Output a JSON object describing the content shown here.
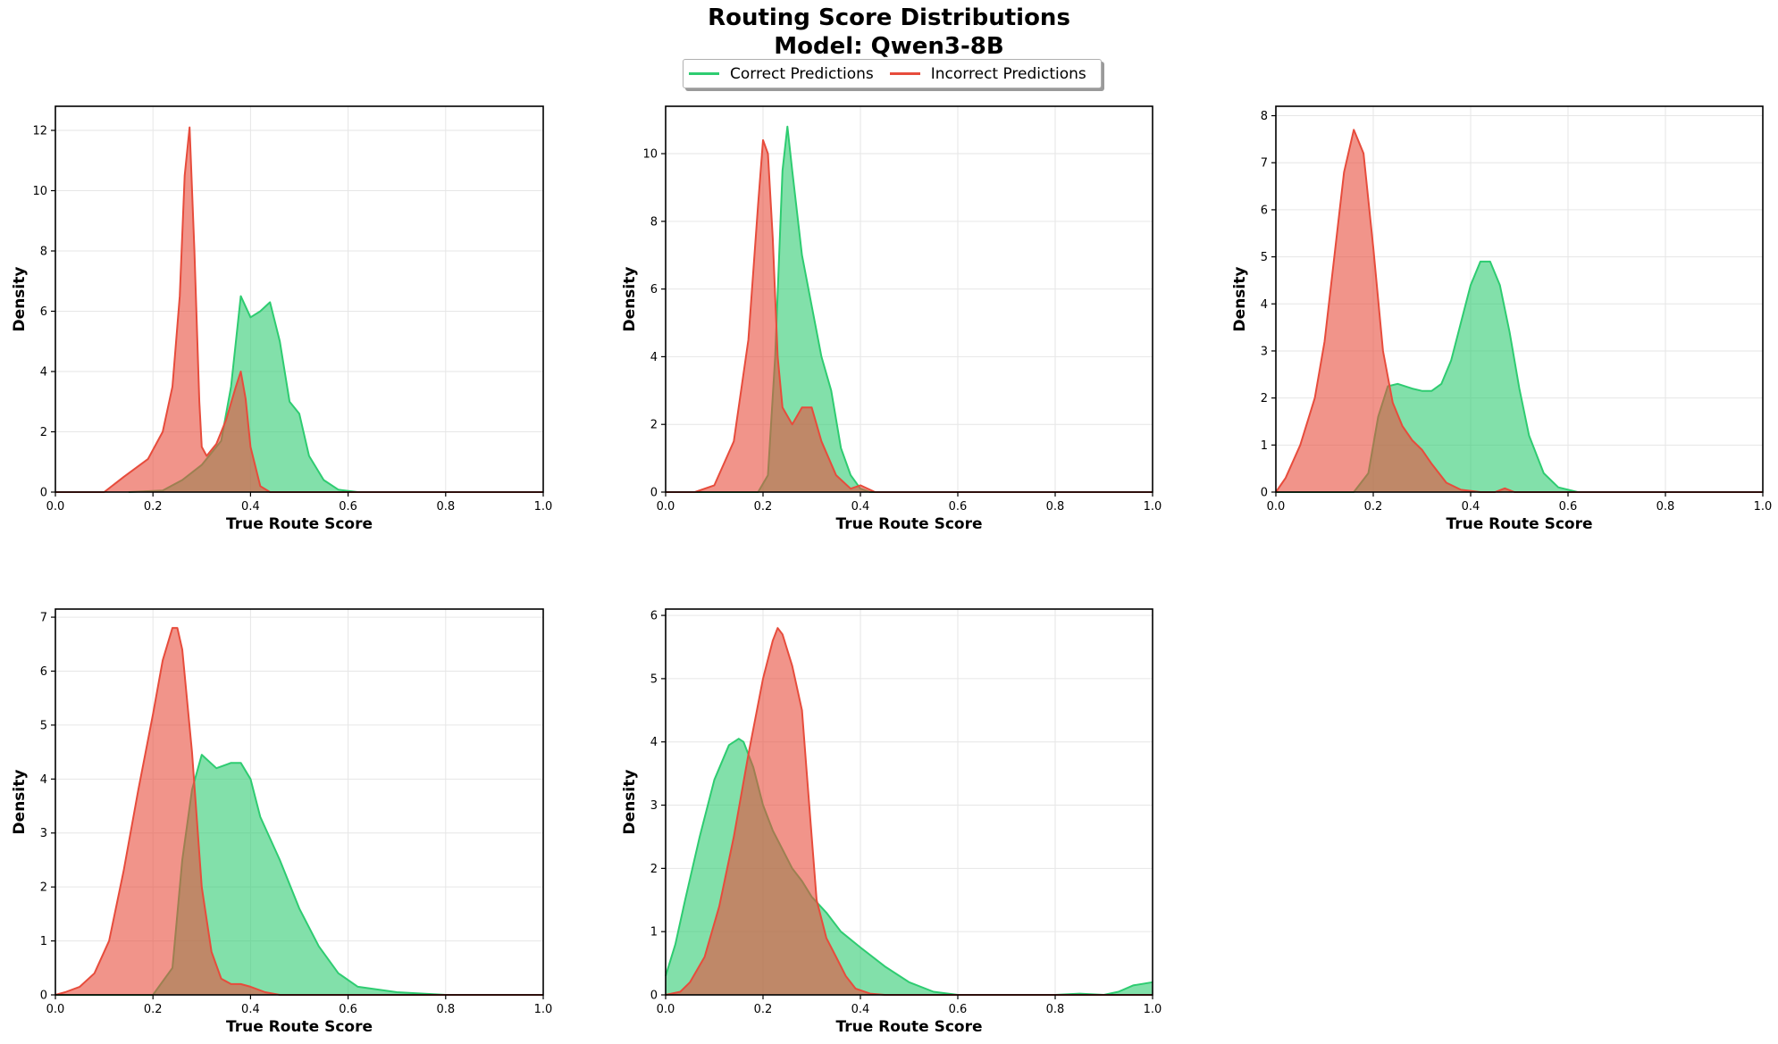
{
  "figure": {
    "title": "Routing Score Distributions",
    "subtitle": "Model: Qwen3-8B",
    "legend": [
      {
        "label": "Correct Predictions",
        "color": "#2ecc71"
      },
      {
        "label": "Incorrect Predictions",
        "color": "#e74c3c"
      }
    ],
    "colors": {
      "correct_fill": "#2ecc71",
      "correct_line": "#2ecc71",
      "incorrect_fill": "#e74c3c",
      "incorrect_line": "#e74c3c"
    }
  },
  "chart_data": [
    {
      "type": "area",
      "xlabel": "True Route Score",
      "ylabel": "Density",
      "xlim": [
        0,
        1
      ],
      "ylim": [
        0,
        12.8
      ],
      "xticks": [
        "0.0",
        "0.2",
        "0.4",
        "0.6",
        "0.8",
        "1.0"
      ],
      "yticks": [
        "0",
        "2",
        "4",
        "6",
        "8",
        "10",
        "12"
      ],
      "ytick_values": [
        0,
        2,
        4,
        6,
        8,
        10,
        12
      ],
      "grid": true,
      "series": [
        {
          "name": "Correct Predictions",
          "x": [
            0.15,
            0.22,
            0.26,
            0.3,
            0.34,
            0.36,
            0.38,
            0.4,
            0.42,
            0.44,
            0.46,
            0.48,
            0.5,
            0.52,
            0.55,
            0.58,
            0.62,
            1.0
          ],
          "y": [
            0,
            0.05,
            0.4,
            0.9,
            1.7,
            3.5,
            6.5,
            5.8,
            6.0,
            6.3,
            5.0,
            3.0,
            2.6,
            1.2,
            0.4,
            0.08,
            0,
            0
          ]
        },
        {
          "name": "Incorrect Predictions",
          "x": [
            0.0,
            0.1,
            0.14,
            0.19,
            0.22,
            0.24,
            0.255,
            0.265,
            0.275,
            0.285,
            0.295,
            0.3,
            0.31,
            0.33,
            0.35,
            0.37,
            0.38,
            0.39,
            0.4,
            0.42,
            0.44,
            1.0
          ],
          "y": [
            0,
            0,
            0.5,
            1.1,
            2.0,
            3.5,
            6.5,
            10.5,
            12.1,
            8.0,
            3.0,
            1.5,
            1.2,
            1.6,
            2.4,
            3.5,
            4.0,
            3.1,
            1.5,
            0.2,
            0,
            0
          ]
        }
      ]
    },
    {
      "type": "area",
      "xlabel": "True Route Score",
      "ylabel": "Density",
      "xlim": [
        0,
        1
      ],
      "ylim": [
        0,
        11.4
      ],
      "xticks": [
        "0.0",
        "0.2",
        "0.4",
        "0.6",
        "0.8",
        "1.0"
      ],
      "yticks": [
        "0",
        "2",
        "4",
        "6",
        "8",
        "10"
      ],
      "ytick_values": [
        0,
        2,
        4,
        6,
        8,
        10
      ],
      "grid": true,
      "series": [
        {
          "name": "Correct Predictions",
          "x": [
            0.0,
            0.19,
            0.21,
            0.225,
            0.24,
            0.25,
            0.26,
            0.28,
            0.3,
            0.32,
            0.34,
            0.36,
            0.38,
            0.4,
            0.42,
            1.0
          ],
          "y": [
            0,
            0,
            0.5,
            4.0,
            9.5,
            10.8,
            9.5,
            7.0,
            5.5,
            4.0,
            3.0,
            1.3,
            0.5,
            0.1,
            0,
            0
          ]
        },
        {
          "name": "Incorrect Predictions",
          "x": [
            0.0,
            0.06,
            0.1,
            0.14,
            0.17,
            0.19,
            0.2,
            0.21,
            0.22,
            0.23,
            0.24,
            0.26,
            0.28,
            0.3,
            0.32,
            0.35,
            0.38,
            0.4,
            0.43,
            1.0
          ],
          "y": [
            0,
            0,
            0.2,
            1.5,
            4.5,
            8.5,
            10.4,
            10.0,
            7.5,
            4.0,
            2.5,
            2.0,
            2.5,
            2.5,
            1.5,
            0.5,
            0.1,
            0.2,
            0,
            0
          ]
        }
      ]
    },
    {
      "type": "area",
      "xlabel": "True Route Score",
      "ylabel": "Density",
      "xlim": [
        0,
        1
      ],
      "ylim": [
        0,
        8.2
      ],
      "xticks": [
        "0.0",
        "0.2",
        "0.4",
        "0.6",
        "0.8",
        "1.0"
      ],
      "yticks": [
        "0",
        "1",
        "2",
        "3",
        "4",
        "5",
        "6",
        "7",
        "8"
      ],
      "ytick_values": [
        0,
        1,
        2,
        3,
        4,
        5,
        6,
        7,
        8
      ],
      "grid": true,
      "series": [
        {
          "name": "Correct Predictions",
          "x": [
            0.0,
            0.16,
            0.19,
            0.21,
            0.23,
            0.25,
            0.28,
            0.3,
            0.32,
            0.34,
            0.36,
            0.38,
            0.4,
            0.42,
            0.44,
            0.46,
            0.48,
            0.5,
            0.52,
            0.55,
            0.58,
            0.62,
            1.0
          ],
          "y": [
            0,
            0,
            0.4,
            1.6,
            2.25,
            2.3,
            2.2,
            2.15,
            2.15,
            2.3,
            2.8,
            3.6,
            4.4,
            4.9,
            4.9,
            4.4,
            3.4,
            2.2,
            1.2,
            0.4,
            0.1,
            0,
            0
          ]
        },
        {
          "name": "Incorrect Predictions",
          "x": [
            0.0,
            0.02,
            0.05,
            0.08,
            0.1,
            0.12,
            0.14,
            0.16,
            0.18,
            0.2,
            0.22,
            0.24,
            0.26,
            0.28,
            0.3,
            0.32,
            0.35,
            0.38,
            0.42,
            0.45,
            0.47,
            0.49,
            0.52,
            1.0
          ],
          "y": [
            0,
            0.3,
            1.0,
            2.0,
            3.2,
            5.0,
            6.8,
            7.7,
            7.2,
            5.2,
            3.0,
            1.9,
            1.4,
            1.1,
            0.9,
            0.6,
            0.2,
            0.05,
            0,
            0,
            0.08,
            0,
            0,
            0
          ]
        }
      ]
    },
    {
      "type": "area",
      "xlabel": "True Route Score",
      "ylabel": "Density",
      "xlim": [
        0,
        1
      ],
      "ylim": [
        0,
        7.15
      ],
      "xticks": [
        "0.0",
        "0.2",
        "0.4",
        "0.6",
        "0.8",
        "1.0"
      ],
      "yticks": [
        "0",
        "1",
        "2",
        "3",
        "4",
        "5",
        "6",
        "7"
      ],
      "ytick_values": [
        0,
        1,
        2,
        3,
        4,
        5,
        6,
        7
      ],
      "grid": true,
      "series": [
        {
          "name": "Correct Predictions",
          "x": [
            0.0,
            0.2,
            0.24,
            0.26,
            0.28,
            0.3,
            0.33,
            0.36,
            0.38,
            0.4,
            0.42,
            0.46,
            0.5,
            0.54,
            0.58,
            0.62,
            0.7,
            0.8,
            1.0
          ],
          "y": [
            0,
            0,
            0.5,
            2.5,
            3.8,
            4.45,
            4.2,
            4.3,
            4.3,
            4.0,
            3.3,
            2.5,
            1.6,
            0.9,
            0.4,
            0.15,
            0.05,
            0,
            0
          ]
        },
        {
          "name": "Incorrect Predictions",
          "x": [
            0.0,
            0.02,
            0.05,
            0.08,
            0.11,
            0.14,
            0.17,
            0.2,
            0.22,
            0.24,
            0.25,
            0.26,
            0.28,
            0.3,
            0.32,
            0.34,
            0.36,
            0.38,
            0.4,
            0.43,
            0.46,
            1.0
          ],
          "y": [
            0,
            0.05,
            0.15,
            0.4,
            1.0,
            2.3,
            3.8,
            5.2,
            6.2,
            6.8,
            6.8,
            6.4,
            4.5,
            2.0,
            0.8,
            0.3,
            0.2,
            0.2,
            0.15,
            0.05,
            0,
            0
          ]
        }
      ]
    },
    {
      "type": "area",
      "xlabel": "True Route Score",
      "ylabel": "Density",
      "xlim": [
        0,
        1
      ],
      "ylim": [
        0,
        6.1
      ],
      "xticks": [
        "0.0",
        "0.2",
        "0.4",
        "0.6",
        "0.8",
        "1.0"
      ],
      "yticks": [
        "0",
        "1",
        "2",
        "3",
        "4",
        "5",
        "6"
      ],
      "ytick_values": [
        0,
        1,
        2,
        3,
        4,
        5,
        6
      ],
      "grid": true,
      "series": [
        {
          "name": "Correct Predictions",
          "x": [
            0.0,
            0.02,
            0.04,
            0.07,
            0.1,
            0.13,
            0.15,
            0.16,
            0.18,
            0.2,
            0.22,
            0.24,
            0.26,
            0.28,
            0.3,
            0.33,
            0.36,
            0.4,
            0.45,
            0.5,
            0.55,
            0.6,
            0.65,
            0.8,
            0.85,
            0.9,
            0.93,
            0.96,
            1.0
          ],
          "y": [
            0.3,
            0.8,
            1.5,
            2.5,
            3.4,
            3.95,
            4.05,
            4.0,
            3.6,
            3.0,
            2.6,
            2.3,
            2.0,
            1.8,
            1.55,
            1.3,
            1.0,
            0.75,
            0.45,
            0.2,
            0.05,
            0,
            0,
            0,
            0.02,
            0,
            0.05,
            0.15,
            0.2
          ]
        },
        {
          "name": "Incorrect Predictions",
          "x": [
            0.0,
            0.03,
            0.05,
            0.08,
            0.11,
            0.14,
            0.17,
            0.2,
            0.22,
            0.23,
            0.24,
            0.26,
            0.28,
            0.29,
            0.3,
            0.31,
            0.33,
            0.35,
            0.37,
            0.39,
            0.42,
            0.45,
            1.0
          ],
          "y": [
            0,
            0.05,
            0.2,
            0.6,
            1.4,
            2.5,
            3.8,
            5.0,
            5.6,
            5.8,
            5.7,
            5.2,
            4.5,
            3.5,
            2.5,
            1.5,
            0.9,
            0.6,
            0.3,
            0.1,
            0.02,
            0,
            0
          ]
        }
      ]
    }
  ]
}
